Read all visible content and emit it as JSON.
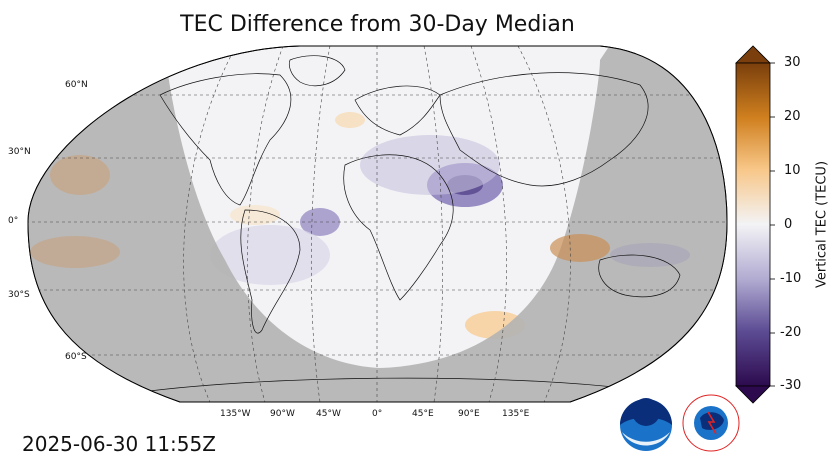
{
  "title": "TEC Difference from 30-Day Median",
  "timestamp": "2025-06-30 11:55Z",
  "colorbar": {
    "label": "Vertical TEC (TECU)",
    "ticks": [
      "30",
      "20",
      "10",
      "0",
      "-10",
      "-20",
      "-30"
    ],
    "colors": {
      "max": "#7a3f0c",
      "high": "#d0801f",
      "mid_high": "#f8c789",
      "zero": "#f3f3f6",
      "mid_low": "#b1abd1",
      "low": "#5c4c94",
      "min": "#2d0a4e"
    }
  },
  "map": {
    "lat_labels": [
      "60°N",
      "30°N",
      "0°",
      "30°S",
      "60°S"
    ],
    "lon_labels": [
      "135°W",
      "90°W",
      "45°W",
      "0°",
      "45°E",
      "90°E",
      "135°E"
    ],
    "night_shade": "#b3b3b3",
    "day_fill": "#f3f3f6"
  },
  "logos": {
    "noaa": "NOAA",
    "nws": "NATIONAL WEATHER SERVICE"
  }
}
